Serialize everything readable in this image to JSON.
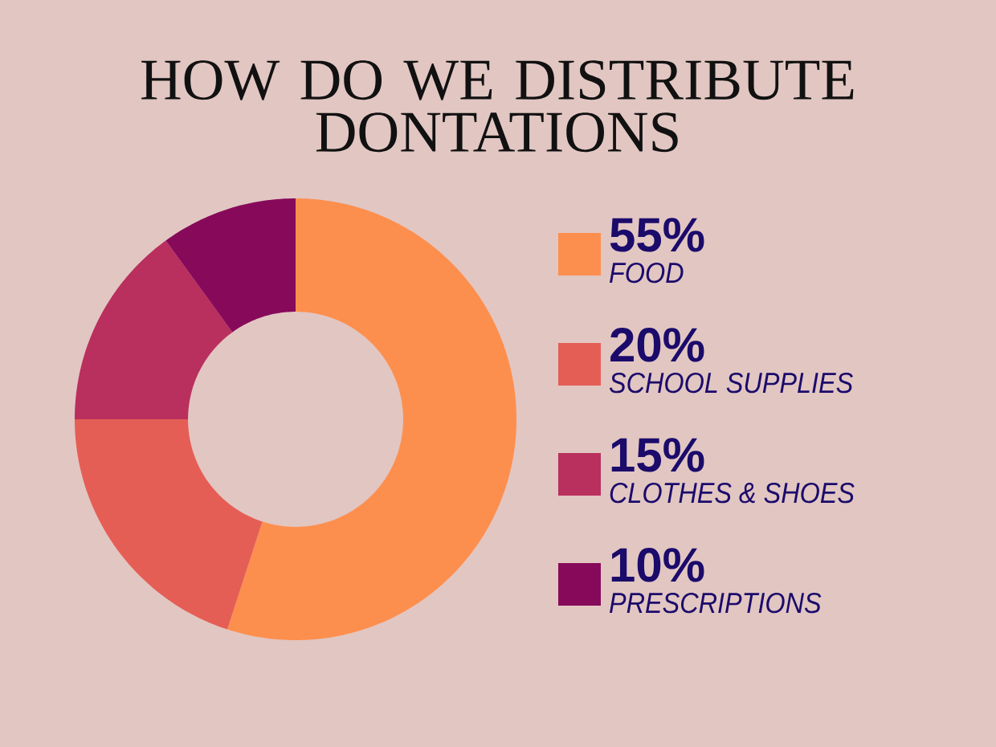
{
  "chart_data": {
    "type": "donut",
    "title": "HOW DO WE DISTRIBUTE DONTATIONS",
    "categories": [
      "FOOD",
      "SCHOOL SUPPLIES",
      "CLOTHES & SHOES",
      "PRESCRIPTIONS"
    ],
    "values": [
      55,
      20,
      15,
      10
    ],
    "value_labels": [
      "55%",
      "20%",
      "15%",
      "10%"
    ],
    "colors": [
      "#fd8f4e",
      "#e55e55",
      "#b92f5d",
      "#870a5a"
    ],
    "legend": "right"
  }
}
